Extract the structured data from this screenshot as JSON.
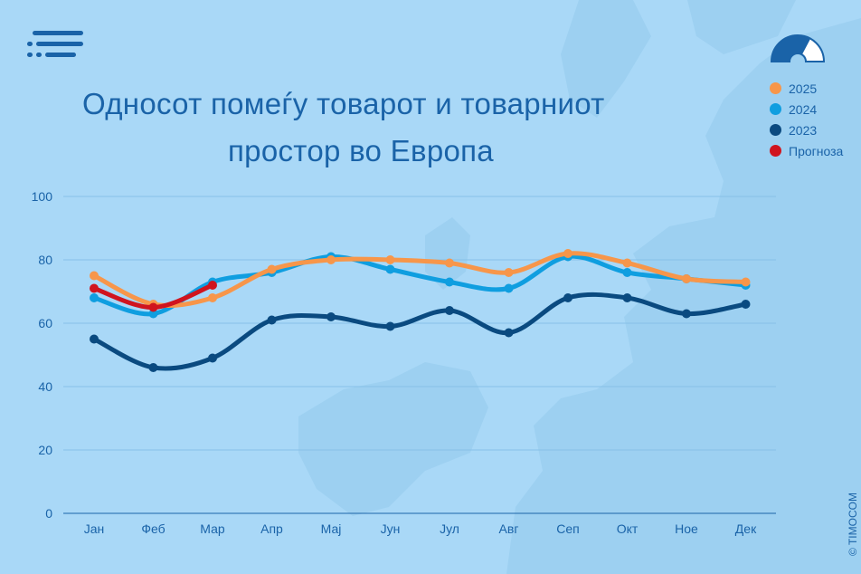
{
  "title_line1": "Односот помеѓу товарот и товарниот",
  "title_line2": "простор во Европа",
  "copyright": "© TIMOCOM",
  "colors": {
    "background": "#a9d8f7",
    "text": "#1a63a8",
    "grid": "#86c1e8"
  },
  "chart_data": {
    "type": "line",
    "title": "Односот помеѓу товарот и товарниот простор во Европа",
    "categories": [
      "Јан",
      "Феб",
      "Мар",
      "Апр",
      "Мај",
      "Јун",
      "Јул",
      "Авг",
      "Сеп",
      "Окт",
      "Ное",
      "Дек"
    ],
    "ylim": [
      0,
      100
    ],
    "yticks": [
      0,
      20,
      40,
      60,
      80,
      100
    ],
    "grid": true,
    "legend_position": "top-right",
    "series": [
      {
        "name": "2025",
        "color": "#f7964a",
        "values": [
          75,
          66,
          68,
          77,
          80,
          80,
          79,
          76,
          82,
          79,
          74,
          73
        ]
      },
      {
        "name": "2024",
        "color": "#0f9ee0",
        "values": [
          68,
          63,
          73,
          76,
          81,
          77,
          73,
          71,
          81,
          76,
          74,
          72
        ]
      },
      {
        "name": "2023",
        "color": "#0a4a80",
        "values": [
          55,
          46,
          49,
          61,
          62,
          59,
          64,
          57,
          68,
          68,
          63,
          66
        ]
      },
      {
        "name": "Прогноза",
        "color": "#d0141e",
        "values": [
          71,
          65,
          72,
          null,
          null,
          null,
          null,
          null,
          null,
          null,
          null,
          null
        ]
      }
    ]
  }
}
